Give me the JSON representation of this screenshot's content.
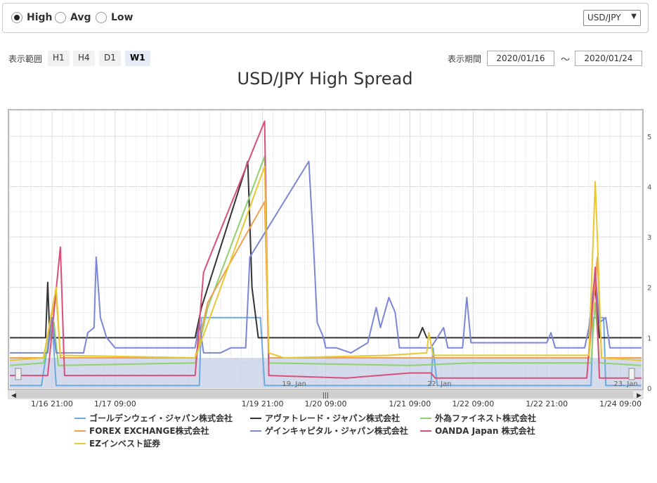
{
  "controls": {
    "radios": [
      {
        "label": "High",
        "checked": true
      },
      {
        "label": "Avg",
        "checked": false
      },
      {
        "label": "Low",
        "checked": false
      }
    ],
    "pair": "USD/JPY",
    "range_label": "表示範囲",
    "range_buttons": [
      {
        "label": "H1",
        "active": false
      },
      {
        "label": "H4",
        "active": false
      },
      {
        "label": "D1",
        "active": false
      },
      {
        "label": "W1",
        "active": true
      }
    ],
    "period_label": "表示期間",
    "date_from": "2020/01/16",
    "tilde": "～",
    "date_to": "2020/01/24"
  },
  "chart_data": {
    "type": "line",
    "title": "USD/JPY High Spread",
    "x_range": [
      1,
      31
    ],
    "y_range": [
      0,
      5.5
    ],
    "y_ticks": [
      0,
      1,
      2,
      3,
      4,
      5
    ],
    "x_ticks": [
      {
        "x": 3,
        "label": "1/16 21:00"
      },
      {
        "x": 6,
        "label": "1/17 09:00"
      },
      {
        "x": 13,
        "label": "1/19 21:00"
      },
      {
        "x": 16,
        "label": "1/20 09:00"
      },
      {
        "x": 20,
        "label": "1/21 09:00"
      },
      {
        "x": 23,
        "label": "1/22 09:00"
      },
      {
        "x": 26.5,
        "label": "1/22 21:00"
      },
      {
        "x": 30,
        "label": "1/24 09:00"
      }
    ],
    "navigator_labels": [
      "19. Jan",
      "22. Jan",
      "23. Jan"
    ],
    "legend_placement": "bottom",
    "series": [
      {
        "name": "ゴールデンウェイ・ジャパン株式会社",
        "color": "#6fa8dc",
        "points": [
          [
            1,
            0.05
          ],
          [
            2,
            0.05
          ],
          [
            2.5,
            0.05
          ],
          [
            3,
            1.4
          ],
          [
            3.2,
            0.05
          ],
          [
            9,
            0.05
          ],
          [
            10,
            0.05
          ],
          [
            10.1,
            1.4
          ],
          [
            12.9,
            1.4
          ],
          [
            13.1,
            0.05
          ],
          [
            21,
            0.05
          ],
          [
            21.1,
            0.8
          ],
          [
            21.3,
            0.05
          ],
          [
            28.6,
            0.05
          ],
          [
            28.7,
            1.4
          ],
          [
            29.2,
            1.4
          ],
          [
            29.3,
            0.05
          ],
          [
            31,
            0.05
          ]
        ]
      },
      {
        "name": "アヴァトレード・ジャパン株式会社",
        "color": "#333333",
        "points": [
          [
            1,
            1
          ],
          [
            2.7,
            1
          ],
          [
            2.8,
            2.1
          ],
          [
            2.9,
            1
          ],
          [
            9.8,
            1
          ],
          [
            10.1,
            1.6
          ],
          [
            12.3,
            4.5
          ],
          [
            12.5,
            2
          ],
          [
            12.8,
            1
          ],
          [
            20.4,
            1
          ],
          [
            20.6,
            1.2
          ],
          [
            20.8,
            1
          ],
          [
            28.5,
            1
          ],
          [
            28.8,
            2.0
          ],
          [
            29,
            1
          ],
          [
            31,
            1
          ]
        ]
      },
      {
        "name": "外為ファイネスト株式会社",
        "color": "#8fd16f",
        "points": [
          [
            1,
            0.45
          ],
          [
            2.6,
            0.5
          ],
          [
            3.1,
            1.3
          ],
          [
            3.3,
            0.45
          ],
          [
            9.8,
            0.5
          ],
          [
            10.4,
            1.6
          ],
          [
            13.1,
            4.6
          ],
          [
            13.3,
            0.5
          ],
          [
            20,
            0.45
          ],
          [
            23,
            0.5
          ],
          [
            26,
            0.5
          ],
          [
            28.6,
            0.5
          ],
          [
            28.8,
            1.7
          ],
          [
            29,
            0.5
          ],
          [
            31,
            0.45
          ]
        ]
      },
      {
        "name": "FOREX EXCHANGE株式会社",
        "color": "#f0a050",
        "points": [
          [
            1,
            0.6
          ],
          [
            2.6,
            0.6
          ],
          [
            3.2,
            1.9
          ],
          [
            3.4,
            0.6
          ],
          [
            9.8,
            0.6
          ],
          [
            10.4,
            1.7
          ],
          [
            13.1,
            3.7
          ],
          [
            13.3,
            0.6
          ],
          [
            20,
            0.6
          ],
          [
            21.2,
            0.6
          ],
          [
            28.5,
            0.6
          ],
          [
            28.9,
            2.6
          ],
          [
            29.1,
            0.6
          ],
          [
            31,
            0.6
          ]
        ]
      },
      {
        "name": "ゲインキャピタル・ジャパン株式会社",
        "color": "#7b86d6",
        "points": [
          [
            1,
            0.7
          ],
          [
            2.8,
            0.7
          ],
          [
            3.0,
            1.4
          ],
          [
            3.2,
            0.7
          ],
          [
            4.5,
            0.7
          ],
          [
            4.7,
            1.1
          ],
          [
            5.0,
            1.2
          ],
          [
            5.1,
            2.6
          ],
          [
            5.3,
            1.4
          ],
          [
            5.6,
            1.0
          ],
          [
            6,
            0.8
          ],
          [
            7,
            0.8
          ],
          [
            9.8,
            0.8
          ],
          [
            10,
            1.3
          ],
          [
            10.2,
            0.7
          ],
          [
            11,
            0.7
          ],
          [
            11.5,
            0.8
          ],
          [
            12.2,
            0.8
          ],
          [
            12.4,
            2.6
          ],
          [
            15.2,
            4.5
          ],
          [
            15.4,
            3
          ],
          [
            15.6,
            1.3
          ],
          [
            15.9,
            1.0
          ],
          [
            16,
            0.8
          ],
          [
            16.5,
            0.8
          ],
          [
            17.2,
            0.7
          ],
          [
            18,
            0.9
          ],
          [
            18.4,
            1.6
          ],
          [
            18.6,
            1.2
          ],
          [
            19,
            1.8
          ],
          [
            19.3,
            1.5
          ],
          [
            19.5,
            0.8
          ],
          [
            21,
            0.8
          ],
          [
            21.6,
            1.2
          ],
          [
            21.8,
            0.8
          ],
          [
            22.5,
            0.8
          ],
          [
            22.7,
            1.8
          ],
          [
            22.9,
            0.9
          ],
          [
            23.5,
            0.9
          ],
          [
            26.5,
            0.9
          ],
          [
            26.7,
            1.1
          ],
          [
            26.9,
            0.8
          ],
          [
            28.3,
            0.8
          ],
          [
            28.5,
            1.2
          ],
          [
            28.8,
            2.3
          ],
          [
            29,
            1.3
          ],
          [
            29.3,
            1.4
          ],
          [
            29.5,
            0.8
          ],
          [
            31,
            0.8
          ]
        ]
      },
      {
        "name": "OANDA Japan 株式会社",
        "color": "#d94f7a",
        "points": [
          [
            1,
            0.25
          ],
          [
            2.8,
            0.25
          ],
          [
            3.4,
            2.8
          ],
          [
            3.6,
            0.25
          ],
          [
            9.8,
            0.25
          ],
          [
            10.2,
            2.3
          ],
          [
            13.1,
            5.3
          ],
          [
            13.3,
            0.25
          ],
          [
            17,
            0.2
          ],
          [
            20,
            0.3
          ],
          [
            21,
            0.3
          ],
          [
            21.2,
            0.2
          ],
          [
            28.4,
            0.2
          ],
          [
            28.8,
            2.4
          ],
          [
            29,
            0.2
          ],
          [
            31,
            0.2
          ]
        ]
      },
      {
        "name": "EZインベスト証券",
        "color": "#e8c832",
        "points": [
          [
            1,
            0.55
          ],
          [
            2.6,
            0.6
          ],
          [
            3.2,
            2.0
          ],
          [
            3.4,
            0.65
          ],
          [
            9.8,
            0.6
          ],
          [
            10.5,
            1.4
          ],
          [
            13.1,
            4.4
          ],
          [
            13.3,
            0.7
          ],
          [
            14,
            0.6
          ],
          [
            19,
            0.65
          ],
          [
            20.8,
            0.7
          ],
          [
            20.9,
            1.1
          ],
          [
            21.1,
            0.65
          ],
          [
            28.5,
            0.65
          ],
          [
            28.8,
            4.1
          ],
          [
            28.9,
            3.0
          ],
          [
            29.1,
            0.6
          ],
          [
            31,
            0.55
          ]
        ]
      }
    ]
  }
}
